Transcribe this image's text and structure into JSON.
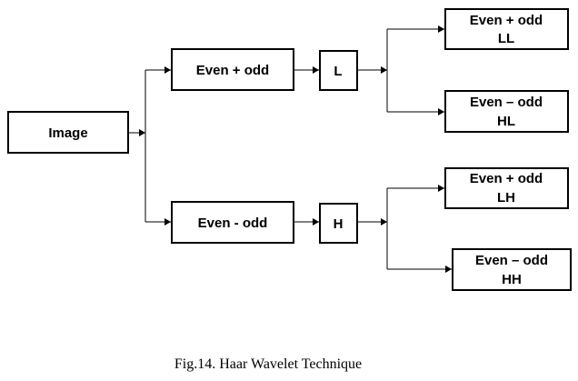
{
  "diagram": {
    "image": "Image",
    "even_plus_odd": "Even + odd",
    "even_minus_odd": "Even - odd",
    "low": "L",
    "high": "H",
    "ll": {
      "line1": "Even + odd",
      "line2": "LL"
    },
    "hl": {
      "line1": "Even – odd",
      "line2": "HL"
    },
    "lh": {
      "line1": "Even + odd",
      "line2": "LH"
    },
    "hh": {
      "line1": "Even – odd",
      "line2": "HH"
    }
  },
  "caption": "Fig.14. Haar Wavelet Technique"
}
